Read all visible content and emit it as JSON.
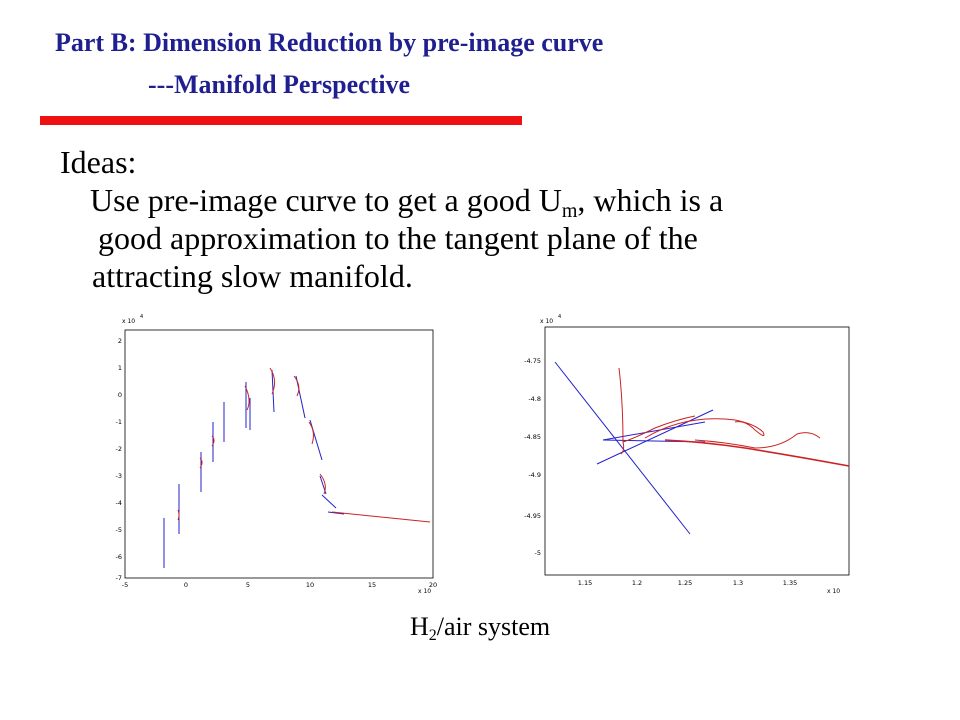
{
  "header": {
    "title_line1": "Part B: Dimension Reduction by pre-image curve",
    "title_line2": "---Manifold Perspective"
  },
  "content": {
    "ideas_label": "Ideas:",
    "line1_pre": "Use pre-image curve to get a good U",
    "line1_sub": "m",
    "line1_post": ", which is a",
    "line2": "good approximation to the tangent plane of the",
    "line3": "attracting slow manifold."
  },
  "figures": [
    {
      "x_multiplier": "x 10",
      "y_multiplier": "x 10",
      "x_ticks": [
        "-5",
        "0",
        "5",
        "10",
        "15",
        "20"
      ],
      "y_ticks": [
        "2",
        "1",
        "0",
        "-1",
        "-2",
        "-3",
        "-4",
        "-5",
        "-6",
        "-7"
      ]
    },
    {
      "x_multiplier": "x 10",
      "y_multiplier": "x 10",
      "x_ticks": [
        "1.15",
        "1.2",
        "1.25",
        "1.3",
        "1.35"
      ],
      "y_ticks": [
        "-4.75",
        "-4.8",
        "-4.85",
        "-4.9",
        "-4.95",
        "-5"
      ]
    }
  ],
  "caption": {
    "prefix": "H",
    "sub": "2",
    "suffix": "/air system"
  },
  "colors": {
    "title": "#1f1f8f",
    "accent_bar": "#ee1111",
    "series_blue": "#2222cc",
    "series_red": "#cc2222"
  }
}
